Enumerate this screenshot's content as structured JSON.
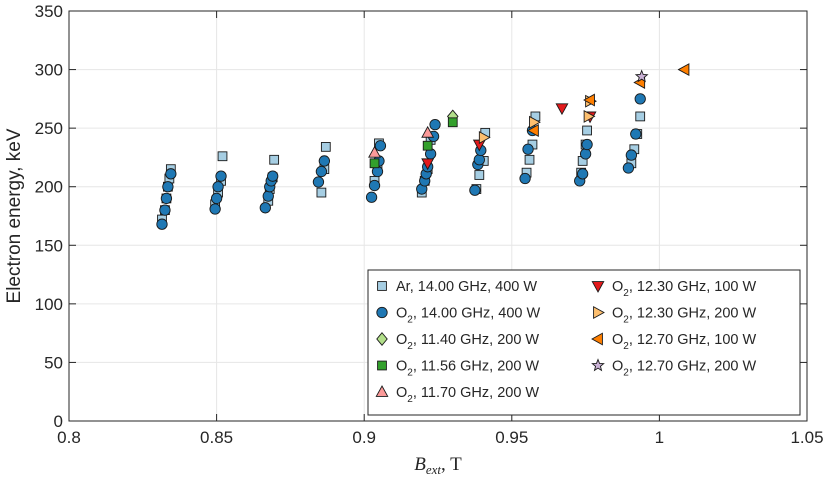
{
  "chart_data": {
    "type": "scatter",
    "xlabel_symbol": "B",
    "xlabel_sub": "ext",
    "xlabel_unit": ", T",
    "ylabel": "Electron energy, keV",
    "xlim": [
      0.8,
      1.05
    ],
    "ylim": [
      0,
      350
    ],
    "xticks": [
      0.8,
      0.85,
      0.9,
      0.95,
      1,
      1.05
    ],
    "xtick_labels": [
      "0.8",
      "0.85",
      "0.9",
      "0.95",
      "1",
      "1.05"
    ],
    "yticks": [
      0,
      50,
      100,
      150,
      200,
      250,
      300,
      350
    ],
    "ytick_labels": [
      "0",
      "50",
      "100",
      "150",
      "200",
      "250",
      "300",
      "350"
    ],
    "grid": true,
    "legend_location": "bottom-right",
    "series": [
      {
        "id": "ar1400",
        "gas": "Ar",
        "sub": "",
        "label": ", 14.00 GHz, 400 W",
        "marker": "square",
        "color": "#a6cee3",
        "points": [
          [
            0.8315,
            172
          ],
          [
            0.8325,
            180
          ],
          [
            0.833,
            190
          ],
          [
            0.8335,
            200
          ],
          [
            0.834,
            207
          ],
          [
            0.8345,
            215
          ],
          [
            0.8495,
            185
          ],
          [
            0.8505,
            195
          ],
          [
            0.8515,
            205
          ],
          [
            0.852,
            226
          ],
          [
            0.8675,
            188
          ],
          [
            0.868,
            198
          ],
          [
            0.869,
            208
          ],
          [
            0.8695,
            223
          ],
          [
            0.8855,
            195
          ],
          [
            0.8865,
            215
          ],
          [
            0.887,
            234
          ],
          [
            0.9035,
            205
          ],
          [
            0.9045,
            215
          ],
          [
            0.905,
            237
          ],
          [
            0.9195,
            195
          ],
          [
            0.9205,
            205
          ],
          [
            0.9215,
            215
          ],
          [
            0.9225,
            240
          ],
          [
            0.938,
            198
          ],
          [
            0.939,
            210
          ],
          [
            0.9405,
            222
          ],
          [
            0.941,
            246
          ],
          [
            0.955,
            212
          ],
          [
            0.956,
            223
          ],
          [
            0.957,
            236
          ],
          [
            0.958,
            260
          ],
          [
            0.9735,
            212
          ],
          [
            0.974,
            222
          ],
          [
            0.975,
            236
          ],
          [
            0.9755,
            248
          ],
          [
            0.9905,
            220
          ],
          [
            0.9915,
            232
          ],
          [
            0.9925,
            245
          ],
          [
            0.9935,
            260
          ]
        ]
      },
      {
        "id": "o21400",
        "gas": "O",
        "sub": "2",
        "label": ", 14.00 GHz, 400 W",
        "marker": "circle",
        "color": "#1f78b4",
        "points": [
          [
            0.8315,
            168
          ],
          [
            0.8325,
            180
          ],
          [
            0.833,
            190
          ],
          [
            0.8335,
            200
          ],
          [
            0.8345,
            211
          ],
          [
            0.8495,
            181
          ],
          [
            0.85,
            190
          ],
          [
            0.8505,
            200
          ],
          [
            0.8515,
            209
          ],
          [
            0.8665,
            182
          ],
          [
            0.8675,
            192
          ],
          [
            0.868,
            200
          ],
          [
            0.8685,
            205
          ],
          [
            0.869,
            209
          ],
          [
            0.8845,
            204
          ],
          [
            0.8855,
            213
          ],
          [
            0.8865,
            222
          ],
          [
            0.9025,
            191
          ],
          [
            0.9035,
            201
          ],
          [
            0.9045,
            213
          ],
          [
            0.905,
            222
          ],
          [
            0.9055,
            235
          ],
          [
            0.9195,
            198
          ],
          [
            0.9205,
            205
          ],
          [
            0.921,
            211
          ],
          [
            0.9215,
            217
          ],
          [
            0.9225,
            228
          ],
          [
            0.9235,
            243
          ],
          [
            0.924,
            253
          ],
          [
            0.9375,
            197
          ],
          [
            0.9385,
            219
          ],
          [
            0.939,
            223
          ],
          [
            0.9395,
            231
          ],
          [
            0.9545,
            207
          ],
          [
            0.9555,
            232
          ],
          [
            0.957,
            248
          ],
          [
            0.973,
            205
          ],
          [
            0.974,
            211
          ],
          [
            0.975,
            228
          ],
          [
            0.9755,
            236
          ],
          [
            0.9895,
            216
          ],
          [
            0.9905,
            227
          ],
          [
            0.992,
            245
          ],
          [
            0.9935,
            275
          ]
        ]
      },
      {
        "id": "o21140",
        "gas": "O",
        "sub": "2",
        "label": ", 11.40 GHz, 200 W",
        "marker": "diamond",
        "color": "#b2df8a",
        "points": [
          [
            0.93,
            260
          ]
        ]
      },
      {
        "id": "o21156",
        "gas": "O",
        "sub": "2",
        "label": ", 11.56 GHz, 200 W",
        "marker": "square",
        "color": "#33a02c",
        "points": [
          [
            0.9035,
            220
          ],
          [
            0.9215,
            235
          ],
          [
            0.93,
            255
          ]
        ]
      },
      {
        "id": "o21170",
        "gas": "O",
        "sub": "2",
        "label": ", 11.70 GHz, 200 W",
        "marker": "triangle-up",
        "color": "#fb9a99",
        "points": [
          [
            0.9035,
            229
          ],
          [
            0.9215,
            246
          ]
        ]
      },
      {
        "id": "o21230a",
        "gas": "O",
        "sub": "2",
        "label": ", 12.30 GHz, 100 W",
        "marker": "triangle-down",
        "color": "#e31a1c",
        "points": [
          [
            0.9215,
            220
          ],
          [
            0.939,
            236
          ],
          [
            0.967,
            267
          ],
          [
            0.9765,
            260
          ]
        ]
      },
      {
        "id": "o21230b",
        "gas": "O",
        "sub": "2",
        "label": ", 12.30 GHz, 200 W",
        "marker": "triangle-right",
        "color": "#fdbf6f",
        "points": [
          [
            0.9405,
            242
          ],
          [
            0.9575,
            255
          ],
          [
            0.976,
            260
          ],
          [
            0.9765,
            273
          ]
        ]
      },
      {
        "id": "o21270a",
        "gas": "O",
        "sub": "2",
        "label": ", 12.70 GHz, 100 W",
        "marker": "triangle-left",
        "color": "#ff7f00",
        "points": [
          [
            0.9575,
            248
          ],
          [
            0.9765,
            274
          ],
          [
            0.9935,
            289
          ],
          [
            1.0085,
            300
          ]
        ]
      },
      {
        "id": "o21270b",
        "gas": "O",
        "sub": "2",
        "label": ", 12.70 GHz, 200 W",
        "marker": "star",
        "color": "#cab2d6",
        "points": [
          [
            0.994,
            294
          ]
        ]
      }
    ],
    "legend_columns": [
      [
        "ar1400",
        "o21400",
        "o21140",
        "o21156",
        "o21170"
      ],
      [
        "o21230a",
        "o21230b",
        "o21270a",
        "o21270b"
      ]
    ]
  }
}
